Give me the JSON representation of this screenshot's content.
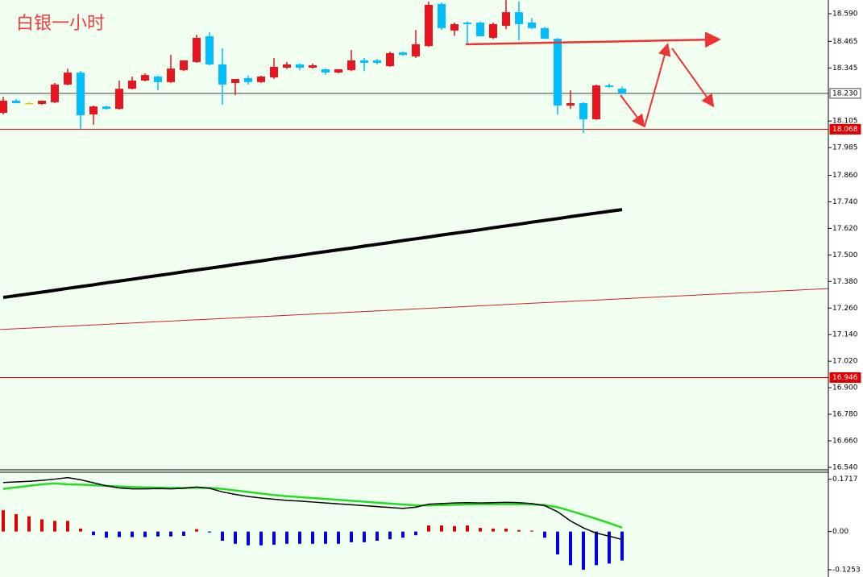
{
  "chart_data": [
    {
      "type": "candlestick",
      "title": "白银一小时",
      "title_color": "#f03c3c",
      "open": [
        18.142,
        18.197,
        18.186,
        18.182,
        18.19,
        18.27,
        18.324,
        18.135,
        18.171,
        18.16,
        18.251,
        18.288,
        18.306,
        18.281,
        18.335,
        18.372,
        18.488,
        18.361,
        18.277,
        18.299,
        18.281,
        18.302,
        18.346,
        18.361,
        18.346,
        18.339,
        18.324,
        18.335,
        18.379,
        18.379,
        18.353,
        18.415,
        18.397,
        18.444,
        18.634,
        18.514,
        18.55,
        18.55,
        18.481,
        18.535,
        18.597,
        18.55,
        18.525,
        18.477,
        18.175,
        18.186,
        18.113,
        18.266,
        18.251
      ],
      "high": [
        18.215,
        18.204,
        18.19,
        18.197,
        18.277,
        18.342,
        18.332,
        18.175,
        18.175,
        18.288,
        18.306,
        18.32,
        18.31,
        18.404,
        18.379,
        18.495,
        18.506,
        18.434,
        18.295,
        18.31,
        18.31,
        18.39,
        18.372,
        18.365,
        18.365,
        18.342,
        18.339,
        18.426,
        18.39,
        18.385,
        18.419,
        18.42,
        18.517,
        18.645,
        18.64,
        18.55,
        18.555,
        18.555,
        18.55,
        18.652,
        18.645,
        18.57,
        18.53,
        18.48,
        18.244,
        18.19,
        18.27,
        18.275,
        18.26
      ],
      "low": [
        18.135,
        18.186,
        18.182,
        18.178,
        18.186,
        18.266,
        18.069,
        18.088,
        18.157,
        18.157,
        18.248,
        18.284,
        18.244,
        18.277,
        18.331,
        18.368,
        18.357,
        18.179,
        18.222,
        18.27,
        18.277,
        18.295,
        18.34,
        18.335,
        18.342,
        18.315,
        18.32,
        18.331,
        18.331,
        18.36,
        18.35,
        18.4,
        18.39,
        18.44,
        18.517,
        18.49,
        18.452,
        18.488,
        18.475,
        18.52,
        18.47,
        18.52,
        18.477,
        18.135,
        18.16,
        18.051,
        18.11,
        18.255,
        18.225
      ],
      "close": [
        18.197,
        18.186,
        18.186,
        18.197,
        18.27,
        18.324,
        18.131,
        18.171,
        18.16,
        18.251,
        18.288,
        18.313,
        18.281,
        18.342,
        18.379,
        18.481,
        18.361,
        18.27,
        18.295,
        18.281,
        18.306,
        18.35,
        18.361,
        18.346,
        18.357,
        18.324,
        18.339,
        18.379,
        18.368,
        18.368,
        18.412,
        18.404,
        18.452,
        18.63,
        18.525,
        18.543,
        18.543,
        18.488,
        18.543,
        18.597,
        18.543,
        18.525,
        18.477,
        18.175,
        18.186,
        18.113,
        18.266,
        18.259,
        18.23
      ],
      "up_color": "#e8141e",
      "down_color": "#00bfff",
      "doji_color": "#e8c800",
      "ma": {
        "color": "#000000",
        "values": [
          17.308,
          17.316,
          17.324,
          17.332,
          17.34,
          17.349,
          17.357,
          17.365,
          17.374,
          17.382,
          17.39,
          17.399,
          17.407,
          17.415,
          17.424,
          17.432,
          17.44,
          17.448,
          17.457,
          17.465,
          17.473,
          17.482,
          17.49,
          17.498,
          17.507,
          17.515,
          17.523,
          17.531,
          17.54,
          17.548,
          17.556,
          17.565,
          17.573,
          17.581,
          17.59,
          17.598,
          17.606,
          17.614,
          17.623,
          17.631,
          17.639,
          17.648,
          17.656,
          17.664,
          17.673,
          17.681,
          17.689,
          17.697,
          17.705
        ]
      },
      "trendline": {
        "color": "#d02020",
        "x": [
          -0.25,
          64
        ],
        "values": [
          17.163,
          17.348
        ]
      },
      "hlines": [
        {
          "value": 18.23,
          "label": "18.230",
          "color": "#404040"
        },
        {
          "value": 18.068,
          "label": "18.068",
          "color": "#e00000"
        },
        {
          "value": 16.946,
          "label": "16.946",
          "color": "#e00000"
        }
      ],
      "ylim": [
        16.529,
        18.652
      ],
      "yticks": [
        {
          "value": 18.59,
          "label": "18.590"
        },
        {
          "value": 18.465,
          "label": "18.465"
        },
        {
          "value": 18.345,
          "label": "18.345"
        },
        {
          "value": 18.105,
          "label": "18.105"
        },
        {
          "value": 17.985,
          "label": "17.985"
        },
        {
          "value": 17.86,
          "label": "17.860"
        },
        {
          "value": 17.74,
          "label": "17.740"
        },
        {
          "value": 17.62,
          "label": "17.620"
        },
        {
          "value": 17.5,
          "label": "17.500"
        },
        {
          "value": 17.38,
          "label": "17.380"
        },
        {
          "value": 17.26,
          "label": "17.260"
        },
        {
          "value": 17.14,
          "label": "17.140"
        },
        {
          "value": 17.02,
          "label": "17.020"
        },
        {
          "value": 16.9,
          "label": "16.900"
        },
        {
          "value": 16.78,
          "label": "16.780"
        },
        {
          "value": 16.66,
          "label": "16.660"
        },
        {
          "value": 16.54,
          "label": "16.540"
        }
      ]
    },
    {
      "type": "macd",
      "macd": {
        "color": "#000000",
        "values": [
          0.161,
          0.163,
          0.165,
          0.168,
          0.172,
          0.177,
          0.17,
          0.16,
          0.15,
          0.143,
          0.14,
          0.14,
          0.141,
          0.14,
          0.142,
          0.146,
          0.142,
          0.13,
          0.122,
          0.115,
          0.11,
          0.106,
          0.102,
          0.1,
          0.097,
          0.094,
          0.091,
          0.088,
          0.085,
          0.082,
          0.079,
          0.076,
          0.08,
          0.09,
          0.092,
          0.094,
          0.095,
          0.094,
          0.095,
          0.096,
          0.095,
          0.092,
          0.085,
          0.065,
          0.035,
          0.012,
          -0.005,
          -0.015,
          -0.026
        ]
      },
      "signal": {
        "color": "#22dd22",
        "values": [
          0.14,
          0.145,
          0.15,
          0.155,
          0.158,
          0.155,
          0.154,
          0.152,
          0.15,
          0.148,
          0.146,
          0.145,
          0.144,
          0.143,
          0.143,
          0.144,
          0.143,
          0.14,
          0.135,
          0.13,
          0.125,
          0.12,
          0.116,
          0.113,
          0.11,
          0.107,
          0.104,
          0.101,
          0.098,
          0.095,
          0.092,
          0.089,
          0.086,
          0.086,
          0.087,
          0.088,
          0.089,
          0.09,
          0.09,
          0.09,
          0.09,
          0.089,
          0.087,
          0.08,
          0.068,
          0.055,
          0.042,
          0.028,
          0.013
        ]
      },
      "histogram": {
        "up_color": "#e00000",
        "down_color": "#0000e0",
        "values": [
          0.07,
          0.057,
          0.05,
          0.04,
          0.035,
          0.035,
          0.01,
          -0.012,
          -0.02,
          -0.018,
          -0.018,
          -0.018,
          -0.016,
          -0.016,
          -0.014,
          0.008,
          -0.003,
          -0.03,
          -0.04,
          -0.045,
          -0.045,
          -0.043,
          -0.04,
          -0.04,
          -0.04,
          -0.04,
          -0.04,
          -0.035,
          -0.035,
          -0.03,
          -0.025,
          -0.02,
          -0.012,
          0.02,
          0.02,
          0.018,
          0.02,
          0.012,
          0.01,
          0.01,
          0.005,
          0.003,
          -0.02,
          -0.075,
          -0.11,
          -0.125,
          -0.11,
          -0.105,
          -0.095
        ]
      },
      "ylim": [
        -0.149,
        0.192
      ],
      "yticks": [
        0.1717,
        {
          "value": 0,
          "label": "0.00"
        },
        -0.1253
      ]
    }
  ]
}
